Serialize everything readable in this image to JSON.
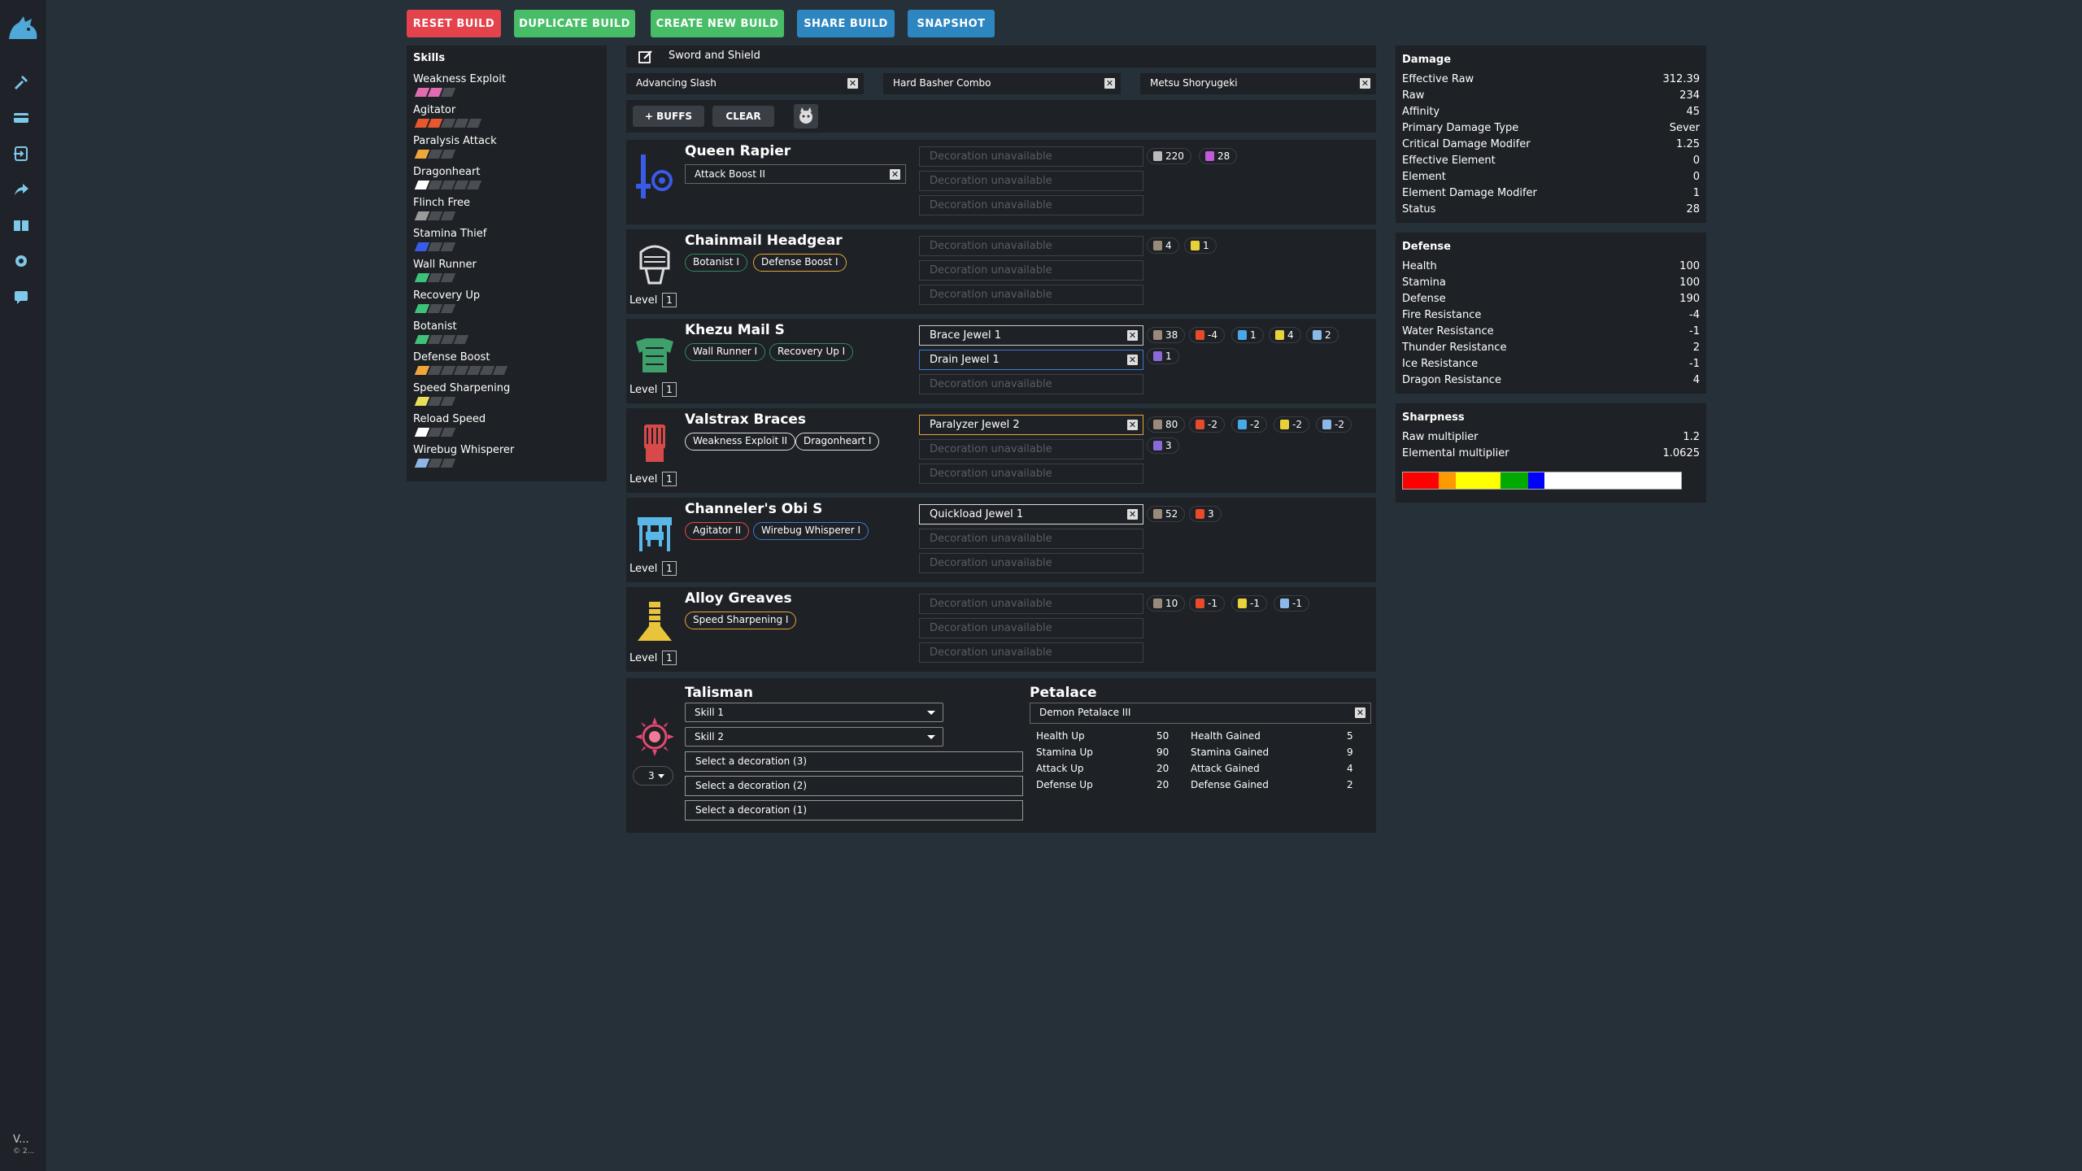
{
  "toolbar": {
    "reset": "RESET BUILD",
    "duplicate": "DUPLICATE BUILD",
    "create": "CREATE NEW BUILD",
    "share": "SHARE BUILD",
    "snapshot": "SNAPSHOT"
  },
  "version": {
    "line1": "V...",
    "line2": "© 2..."
  },
  "skills_panel": {
    "title": "Skills",
    "skills": [
      {
        "name": "Weakness Exploit",
        "filled": 2,
        "max": 3,
        "color": "#e06bb0"
      },
      {
        "name": "Agitator",
        "filled": 2,
        "max": 5,
        "color": "#e8572e"
      },
      {
        "name": "Paralysis Attack",
        "filled": 1,
        "max": 3,
        "color": "#f0a73a"
      },
      {
        "name": "Dragonheart",
        "filled": 1,
        "max": 5,
        "color": "#ffffff"
      },
      {
        "name": "Flinch Free",
        "filled": 1,
        "max": 3,
        "color": "#9a9a9a"
      },
      {
        "name": "Stamina Thief",
        "filled": 1,
        "max": 3,
        "color": "#3a5ae8"
      },
      {
        "name": "Wall Runner",
        "filled": 1,
        "max": 3,
        "color": "#3ec178"
      },
      {
        "name": "Recovery Up",
        "filled": 1,
        "max": 3,
        "color": "#3ec178"
      },
      {
        "name": "Botanist",
        "filled": 1,
        "max": 4,
        "color": "#3ec178"
      },
      {
        "name": "Defense Boost",
        "filled": 1,
        "max": 7,
        "color": "#f0a73a"
      },
      {
        "name": "Speed Sharpening",
        "filled": 1,
        "max": 3,
        "color": "#e8e05a"
      },
      {
        "name": "Reload Speed",
        "filled": 1,
        "max": 3,
        "color": "#ffffff"
      },
      {
        "name": "Wirebug Whisperer",
        "filled": 1,
        "max": 3,
        "color": "#8fb4e6"
      }
    ]
  },
  "weapon_bar": {
    "weapon_type": "Sword and Shield",
    "switch_skills": [
      "Advancing Slash",
      "Hard Basher Combo",
      "Metsu Shoryugeki"
    ],
    "buffs_label": "+ BUFFS",
    "clear_label": "CLEAR"
  },
  "level_label": "Level",
  "decoration_unavailable": "Decoration unavailable",
  "equipment": [
    {
      "name": "Queen Rapier",
      "rampage": "Attack Boost II",
      "stats": [
        {
          "value": "220",
          "color": "#bbbbbb"
        },
        {
          "value": "28",
          "color": "#c05ad8"
        }
      ]
    },
    {
      "name": "Chainmail Headgear",
      "level": "1",
      "skills": [
        {
          "label": "Botanist I",
          "style": "green"
        },
        {
          "label": "Defense Boost I",
          "style": "orange"
        }
      ],
      "stats": [
        {
          "value": "4",
          "color": "#9a8a7a"
        },
        {
          "value": "1",
          "color": "#e8d13a"
        }
      ]
    },
    {
      "name": "Khezu Mail S",
      "level": "1",
      "skills": [
        {
          "label": "Wall Runner I",
          "style": "green"
        },
        {
          "label": "Recovery Up I",
          "style": "green"
        }
      ],
      "decos": [
        "Brace Jewel 1",
        "Drain Jewel 1"
      ],
      "stats": [
        {
          "value": "38",
          "color": "#9a8a7a"
        },
        {
          "value": "-4",
          "color": "#e84a2a"
        },
        {
          "value": "1",
          "color": "#4aa8e8"
        },
        {
          "value": "4",
          "color": "#e8d13a"
        },
        {
          "value": "2",
          "color": "#8ab8e8"
        },
        {
          "value": "1",
          "color": "#8a6ad8"
        }
      ]
    },
    {
      "name": "Valstrax Braces",
      "level": "1",
      "skills": [
        {
          "label": "Weakness Exploit II",
          "style": "white"
        },
        {
          "label": "Dragonheart I",
          "style": "white"
        }
      ],
      "decos": [
        "Paralyzer Jewel 2"
      ],
      "stats": [
        {
          "value": "80",
          "color": "#9a8a7a"
        },
        {
          "value": "-2",
          "color": "#e84a2a"
        },
        {
          "value": "-2",
          "color": "#4aa8e8"
        },
        {
          "value": "-2",
          "color": "#e8d13a"
        },
        {
          "value": "-2",
          "color": "#8ab8e8"
        },
        {
          "value": "3",
          "color": "#8a6ad8"
        }
      ]
    },
    {
      "name": "Channeler's Obi S",
      "level": "1",
      "skills": [
        {
          "label": "Agitator II",
          "style": "red"
        },
        {
          "label": "Wirebug Whisperer I",
          "style": "blue"
        }
      ],
      "decos": [
        "Quickload Jewel 1"
      ],
      "stats": [
        {
          "value": "52",
          "color": "#9a8a7a"
        },
        {
          "value": "3",
          "color": "#e84a2a"
        }
      ]
    },
    {
      "name": "Alloy Greaves",
      "level": "1",
      "skills": [
        {
          "label": "Speed Sharpening I",
          "style": "orange"
        }
      ],
      "stats": [
        {
          "value": "10",
          "color": "#9a8a7a"
        },
        {
          "value": "-1",
          "color": "#e84a2a"
        },
        {
          "value": "-1",
          "color": "#e8d13a"
        },
        {
          "value": "-1",
          "color": "#8ab8e8"
        }
      ]
    }
  ],
  "talisman": {
    "title": "Talisman",
    "skill1": "Skill 1",
    "skill2": "Skill 2",
    "slots_value": "3",
    "decos": [
      "Select a decoration (3)",
      "Select a decoration (2)",
      "Select a decoration (1)"
    ]
  },
  "petalace": {
    "title": "Petalace",
    "selected": "Demon Petalace III",
    "rows": [
      {
        "up_label": "Health Up",
        "up": "50",
        "gain_label": "Health Gained",
        "gain": "5"
      },
      {
        "up_label": "Stamina Up",
        "up": "90",
        "gain_label": "Stamina Gained",
        "gain": "9"
      },
      {
        "up_label": "Attack Up",
        "up": "20",
        "gain_label": "Attack Gained",
        "gain": "4"
      },
      {
        "up_label": "Defense Up",
        "up": "20",
        "gain_label": "Defense Gained",
        "gain": "2"
      }
    ]
  },
  "damage": {
    "title": "Damage",
    "rows": [
      {
        "label": "Effective Raw",
        "value": "312.39"
      },
      {
        "label": "Raw",
        "value": "234"
      },
      {
        "label": "Affinity",
        "value": "45"
      },
      {
        "label": "Primary Damage Type",
        "value": "Sever"
      },
      {
        "label": "Critical Damage Modifer",
        "value": "1.25"
      },
      {
        "label": "Effective Element",
        "value": "0"
      },
      {
        "label": "Element",
        "value": "0"
      },
      {
        "label": "Element Damage Modifer",
        "value": "1"
      },
      {
        "label": "Status",
        "value": "28"
      }
    ]
  },
  "defense": {
    "title": "Defense",
    "rows": [
      {
        "label": "Health",
        "value": "100"
      },
      {
        "label": "Stamina",
        "value": "100"
      },
      {
        "label": "Defense",
        "value": "190"
      },
      {
        "label": "Fire Resistance",
        "value": "-4"
      },
      {
        "label": "Water Resistance",
        "value": "-1"
      },
      {
        "label": "Thunder Resistance",
        "value": "2"
      },
      {
        "label": "Ice Resistance",
        "value": "-1"
      },
      {
        "label": "Dragon Resistance",
        "value": "4"
      }
    ]
  },
  "sharpness": {
    "title": "Sharpness",
    "rows": [
      {
        "label": "Raw multiplier",
        "value": "1.2"
      },
      {
        "label": "Elemental multiplier",
        "value": "1.0625"
      }
    ],
    "segments": [
      {
        "color": "#ff0000",
        "fraction": 0.13
      },
      {
        "color": "#ff9900",
        "fraction": 0.06
      },
      {
        "color": "#ffff00",
        "fraction": 0.16
      },
      {
        "color": "#00aa00",
        "fraction": 0.1
      },
      {
        "color": "#0000ff",
        "fraction": 0.06
      },
      {
        "color": "#ffffff",
        "fraction": 0.49
      }
    ]
  }
}
